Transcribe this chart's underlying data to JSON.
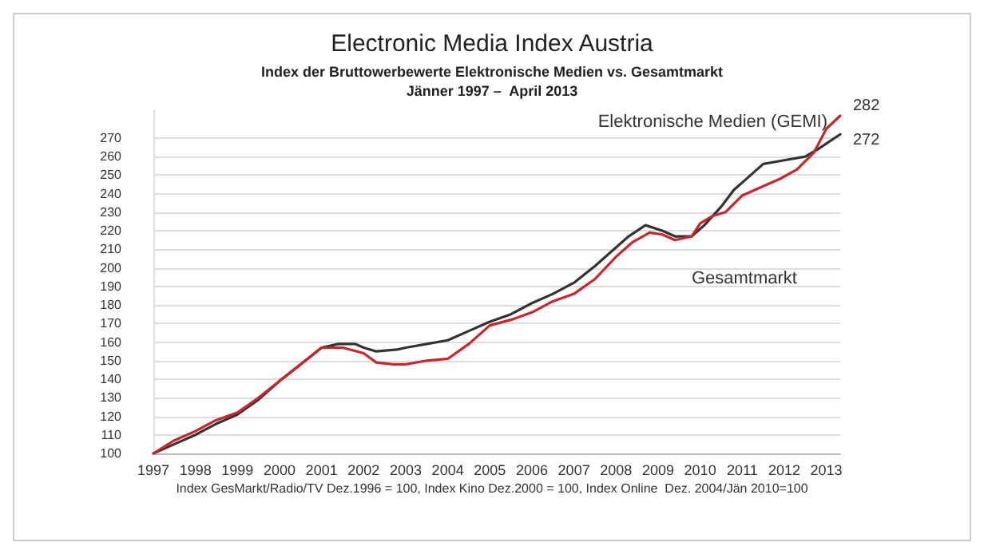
{
  "chart_data": {
    "type": "line",
    "title": "Electronic Media Index Austria",
    "subtitle": "Index der Bruttowerbewerte Elektronische Medien vs. Gesamtmarkt\nJänner 1997 –  April 2013",
    "annotations": [
      "Index GesMarkt/Radio/TV Dez.1996 = 100, Index Kino Dez.2000 = 100, Index Online  Dez. 2004/Jän 2010=100"
    ],
    "xlim": [
      1997,
      2013.33
    ],
    "xticks": [
      1997,
      1998,
      1999,
      2000,
      2001,
      2002,
      2003,
      2004,
      2005,
      2006,
      2007,
      2008,
      2009,
      2010,
      2011,
      2012,
      2013
    ],
    "ylim": [
      100,
      285
    ],
    "yticks": [
      100,
      110,
      120,
      130,
      140,
      150,
      160,
      170,
      180,
      190,
      200,
      210,
      220,
      230,
      240,
      250,
      260,
      270
    ],
    "grid": "y",
    "legend": false,
    "marker": "none",
    "line_style": "solid",
    "series": [
      {
        "name": "Elektronische Medien (GEMI)",
        "color": "#c8262c",
        "x": [
          1997,
          1997.5,
          1998,
          1998.5,
          1999,
          1999.5,
          2000,
          2000.5,
          2001,
          2001.5,
          2002,
          2002.3,
          2002.7,
          2003,
          2003.5,
          2004,
          2004.5,
          2005,
          2005.5,
          2006,
          2006.5,
          2007,
          2007.5,
          2008,
          2008.4,
          2008.8,
          2009.1,
          2009.4,
          2009.8,
          2010,
          2010.3,
          2010.6,
          2011,
          2011.5,
          2011.9,
          2012.3,
          2012.7,
          2013,
          2013.33
        ],
        "values": [
          100,
          107,
          112,
          118,
          122,
          130,
          139,
          148,
          157,
          157,
          154,
          149,
          148,
          148,
          150,
          151,
          159,
          169,
          172,
          176,
          182,
          186,
          194,
          206,
          214,
          219,
          218,
          215,
          217,
          224,
          228,
          230,
          239,
          244,
          248,
          253,
          262,
          275,
          282
        ],
        "value_labels": [
          null,
          null,
          null,
          null,
          null,
          null,
          null,
          null,
          null,
          null,
          null,
          null,
          null,
          null,
          null,
          null,
          null,
          null,
          null,
          null,
          null,
          null,
          null,
          null,
          null,
          null,
          null,
          null,
          null,
          null,
          null,
          null,
          null,
          null,
          null,
          null,
          null,
          null,
          "282"
        ]
      },
      {
        "name": "Gesamtmarkt",
        "color": "#333333",
        "x": [
          1997,
          1997.5,
          1998,
          1998.5,
          1999,
          1999.5,
          2000,
          2000.5,
          2001,
          2001.4,
          2001.8,
          2002,
          2002.3,
          2002.8,
          2003,
          2003.5,
          2004,
          2004.5,
          2005,
          2005.5,
          2006,
          2006.5,
          2007,
          2007.5,
          2008,
          2008.3,
          2008.7,
          2009.1,
          2009.4,
          2009.8,
          2010.1,
          2010.5,
          2010.8,
          2011.2,
          2011.5,
          2012,
          2012.5,
          2012.8,
          2013.33
        ],
        "values": [
          100,
          105,
          110,
          116,
          121,
          129,
          139,
          148,
          157,
          159,
          159,
          157,
          155,
          156,
          157,
          159,
          161,
          166,
          171,
          175,
          181,
          186,
          192,
          201,
          211,
          217,
          223,
          220,
          217,
          217,
          223,
          233,
          242,
          250,
          256,
          258,
          260,
          264,
          272
        ],
        "value_labels": [
          null,
          null,
          null,
          null,
          null,
          null,
          null,
          null,
          null,
          null,
          null,
          null,
          null,
          null,
          null,
          null,
          null,
          null,
          null,
          null,
          null,
          null,
          null,
          null,
          null,
          null,
          null,
          null,
          null,
          null,
          null,
          null,
          null,
          null,
          null,
          null,
          null,
          null,
          "272"
        ]
      }
    ]
  }
}
